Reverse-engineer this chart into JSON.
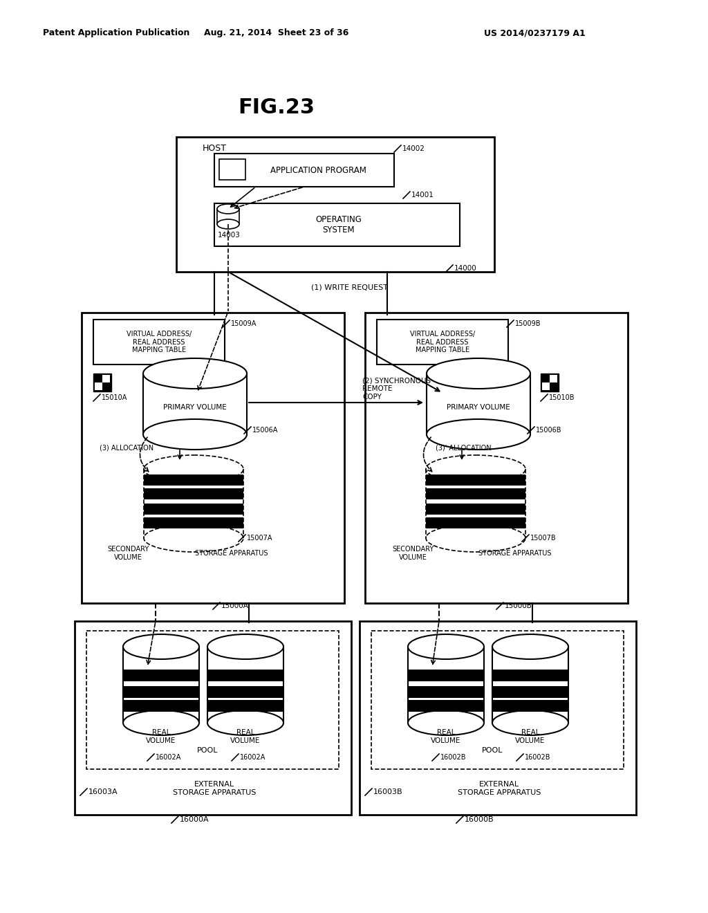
{
  "bg_color": "#ffffff",
  "fig_title": "FIG.23",
  "header_left": "Patent Application Publication",
  "header_mid": "Aug. 21, 2014  Sheet 23 of 36",
  "header_right": "US 2014/0237179 A1"
}
